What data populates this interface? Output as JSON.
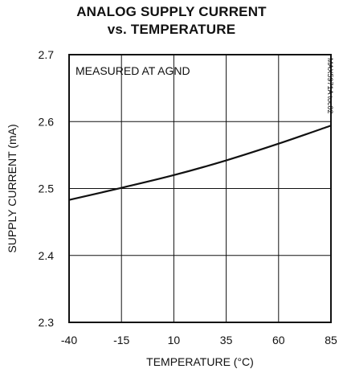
{
  "chart_data": {
    "type": "line",
    "title": "ANALOG SUPPLY CURRENT",
    "subtitle": "vs. TEMPERATURE",
    "xlabel": "TEMPERATURE (°C)",
    "ylabel": "SUPPLY CURRENT (mA)",
    "annotation": "MEASURED AT AGND",
    "figure_code": "MAX5971A toc02",
    "xlim": [
      -40,
      85
    ],
    "ylim": [
      2.3,
      2.7
    ],
    "xticks": [
      "-40",
      "-15",
      "10",
      "35",
      "60",
      "85"
    ],
    "yticks": [
      "2.3",
      "2.4",
      "2.5",
      "2.6",
      "2.7"
    ],
    "grid": true,
    "series": [
      {
        "x": [
          -40,
          -15,
          10,
          35,
          60,
          85
        ],
        "y": [
          2.483,
          2.501,
          2.52,
          2.542,
          2.567,
          2.594
        ]
      }
    ],
    "colors": {
      "line": "#111111",
      "grid": "#111111"
    }
  }
}
